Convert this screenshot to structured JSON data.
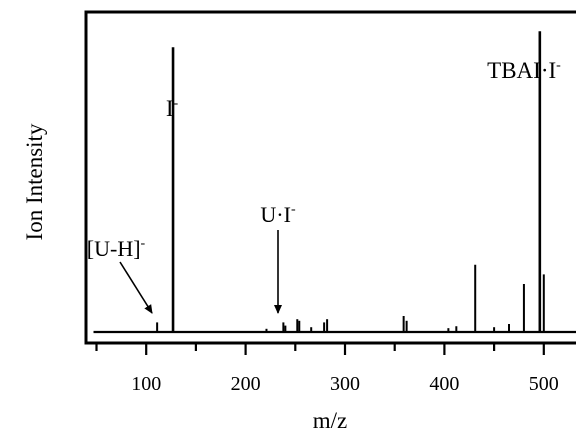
{
  "chart_data": {
    "type": "line",
    "title": "",
    "xlabel": "m/z",
    "ylabel": "Ion Intensity",
    "xlim": [
      50,
      560
    ],
    "ylim": [
      0,
      1.0
    ],
    "x_ticks": [
      100,
      200,
      300,
      400,
      500
    ],
    "x_tick_labels": [
      "100",
      "200",
      "300",
      "400",
      "500"
    ],
    "grid": false,
    "series": [
      {
        "peaks": [
          {
            "x": 111,
            "y": 0.03
          },
          {
            "x": 127,
            "y": 0.89
          },
          {
            "x": 221,
            "y": 0.01
          },
          {
            "x": 238,
            "y": 0.03
          },
          {
            "x": 240,
            "y": 0.02
          },
          {
            "x": 252,
            "y": 0.04
          },
          {
            "x": 254,
            "y": 0.035
          },
          {
            "x": 266,
            "y": 0.015
          },
          {
            "x": 279,
            "y": 0.03
          },
          {
            "x": 282,
            "y": 0.04
          },
          {
            "x": 359,
            "y": 0.05
          },
          {
            "x": 362,
            "y": 0.035
          },
          {
            "x": 404,
            "y": 0.012
          },
          {
            "x": 412,
            "y": 0.018
          },
          {
            "x": 431,
            "y": 0.21
          },
          {
            "x": 450,
            "y": 0.015
          },
          {
            "x": 465,
            "y": 0.025
          },
          {
            "x": 480,
            "y": 0.15
          },
          {
            "x": 496,
            "y": 0.94
          },
          {
            "x": 500,
            "y": 0.18
          }
        ]
      }
    ],
    "annotations": [
      {
        "text": "I",
        "sup": "-",
        "x": 127,
        "arrow": false
      },
      {
        "text": "TBAI·I",
        "sup": "-",
        "x": 496,
        "arrow": false
      },
      {
        "text": "U·I",
        "sup": "-",
        "x": 238,
        "arrow": true
      },
      {
        "text": "[U-H]",
        "sup": "-",
        "x": 111,
        "arrow": true
      }
    ]
  }
}
